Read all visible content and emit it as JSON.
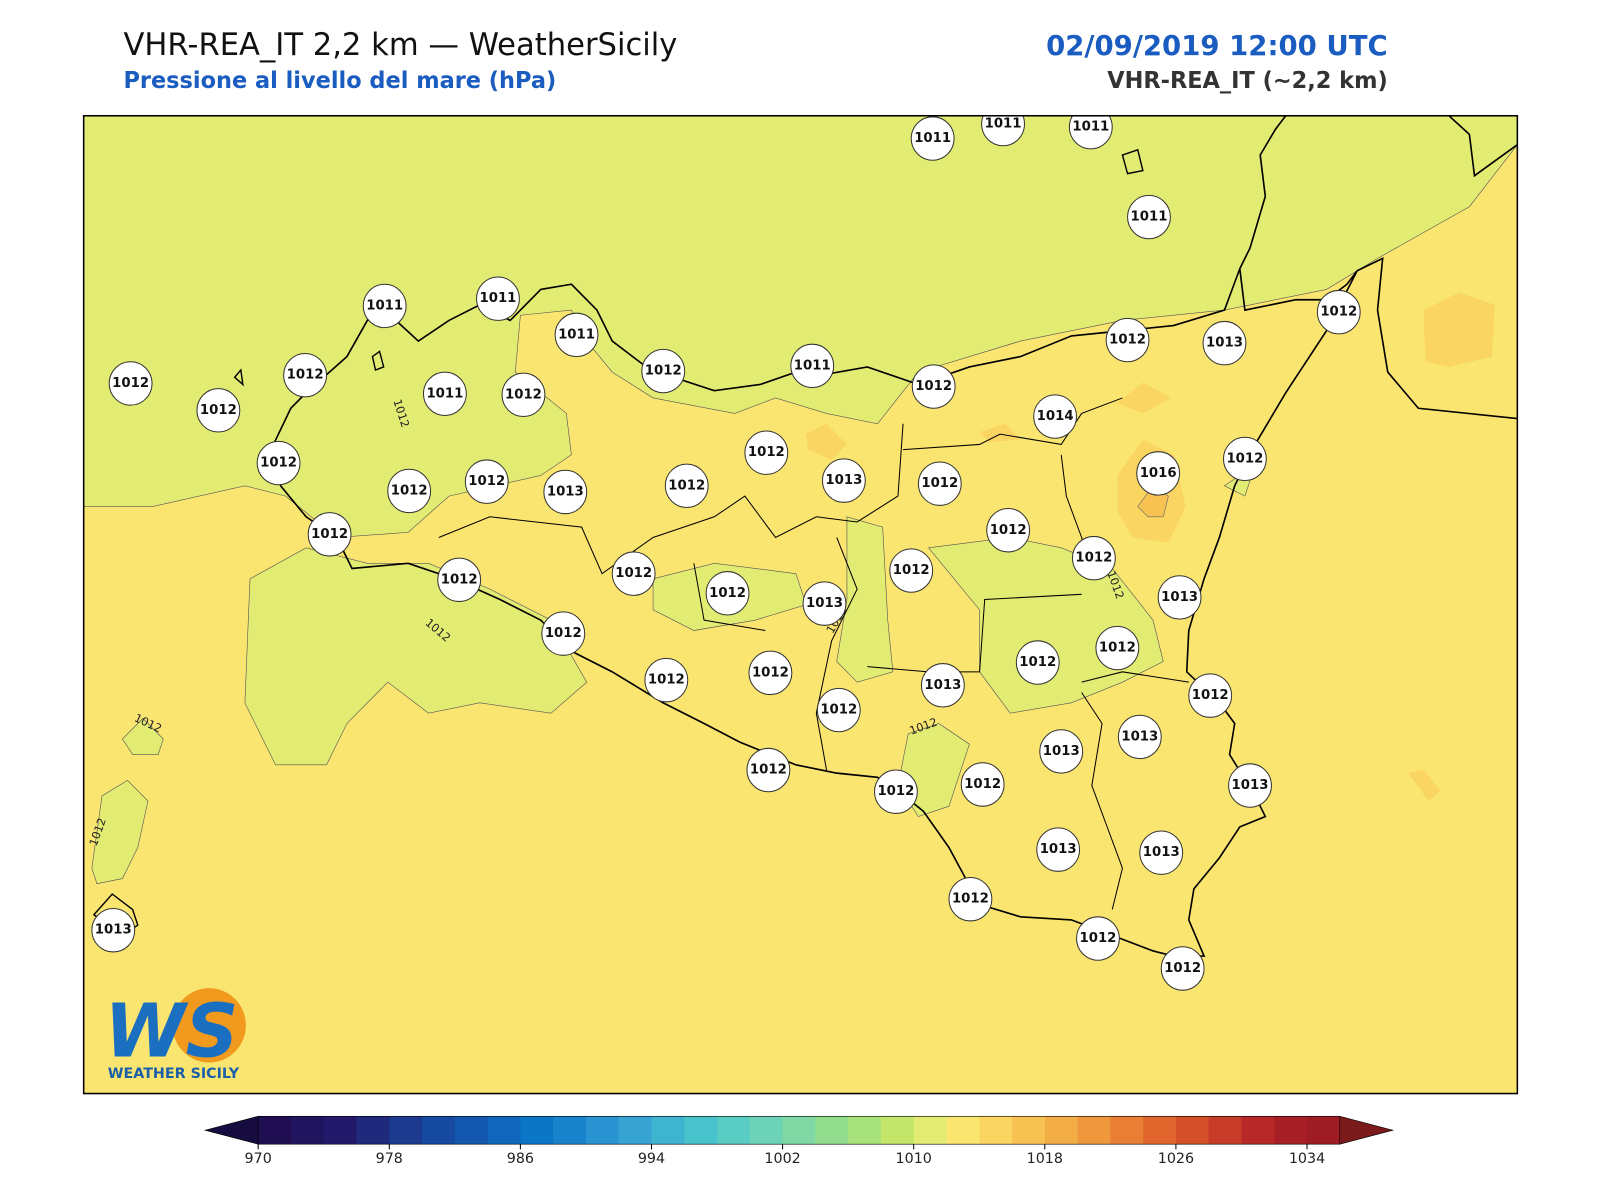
{
  "header": {
    "title": "VHR-REA_IT 2,2 km — WeatherSicily",
    "subtitle": "Pressione al livello del mare (hPa)",
    "datetime": "02/09/2019 12:00 UTC",
    "model": "VHR-REA_IT (~2,2 km)"
  },
  "map": {
    "fill_levels": {
      "background": 1012,
      "low": 1010,
      "high": 1014,
      "peak": 1016
    },
    "stations": [
      1011,
      1011,
      1011,
      1011,
      1011,
      1011,
      1011,
      1012,
      1012,
      1012,
      1011,
      1012,
      1012,
      1011,
      1012,
      1012,
      1013,
      1012,
      1014,
      1012,
      1013,
      1012,
      1016,
      1012,
      1012,
      1012,
      1012,
      1013,
      1012,
      1012,
      1012,
      1012,
      1012,
      1012,
      1013,
      1012,
      1013,
      1012,
      1012,
      1012,
      1012,
      1012,
      1012,
      1013,
      1012,
      1012,
      1013,
      1013,
      1012,
      1012,
      1012,
      1013,
      1013,
      1013,
      1012,
      1012,
      1012,
      1013
    ],
    "contour_labels": [
      1012,
      1012,
      1012,
      1012,
      1012,
      1012,
      1012
    ]
  },
  "colorbar": {
    "lim": [
      970,
      1036
    ],
    "ticks": [
      970,
      978,
      986,
      994,
      1002,
      1010,
      1018,
      1026,
      1034
    ],
    "colors": [
      "#1f0f52",
      "#21145e",
      "#22196b",
      "#1f2a7d",
      "#1c3a8e",
      "#1649a0",
      "#1357ae",
      "#0f66bb",
      "#0b75c6",
      "#1984cc",
      "#2a93d1",
      "#37a3d3",
      "#3eb4d1",
      "#48c2cb",
      "#59ccc3",
      "#6cd3b6",
      "#80d9a4",
      "#93dd8f",
      "#a8e27b",
      "#c2e56a",
      "#e3ec72",
      "#fbe571",
      "#fad561",
      "#f7c252",
      "#f2ad47",
      "#ee973d",
      "#e97f35",
      "#e1662e",
      "#d54f29",
      "#c73c28",
      "#b82828",
      "#a51f25",
      "#9e1d24"
    ],
    "under_color": "#170c3f",
    "over_color": "#7a1a1a"
  },
  "logo": {
    "mark": "WS",
    "name": "WEATHER SICILY"
  }
}
